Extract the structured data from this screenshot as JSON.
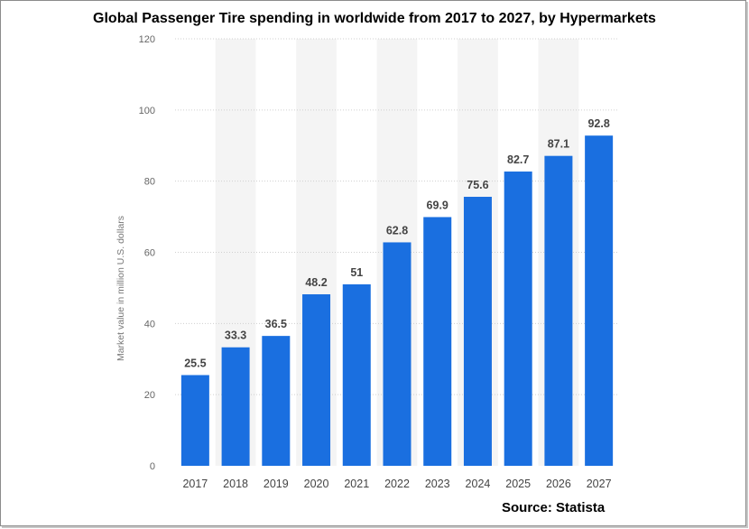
{
  "chart_data": {
    "type": "bar",
    "title": "Global Passenger Tire spending in worldwide from 2017 to 2027, by Hypermarkets",
    "ylabel": "Market value in million U.S. dollars",
    "xlabel": "",
    "categories": [
      "2017",
      "2018",
      "2019",
      "2020",
      "2021",
      "2022",
      "2023",
      "2024",
      "2025",
      "2026",
      "2027"
    ],
    "values": [
      25.5,
      33.3,
      36.5,
      48.2,
      51,
      62.8,
      69.9,
      75.6,
      82.7,
      87.1,
      92.8
    ],
    "value_labels": [
      "25.5",
      "33.3",
      "36.5",
      "48.2",
      "51",
      "62.8",
      "69.9",
      "75.6",
      "82.7",
      "87.1",
      "92.8"
    ],
    "ylim": [
      0,
      120
    ],
    "yticks": [
      "0",
      "20",
      "40",
      "60",
      "80",
      "100",
      "120"
    ],
    "grid": true,
    "bar_color": "#1a6fe0",
    "band_color": "#f4f4f4",
    "source": "Source: Statista"
  }
}
